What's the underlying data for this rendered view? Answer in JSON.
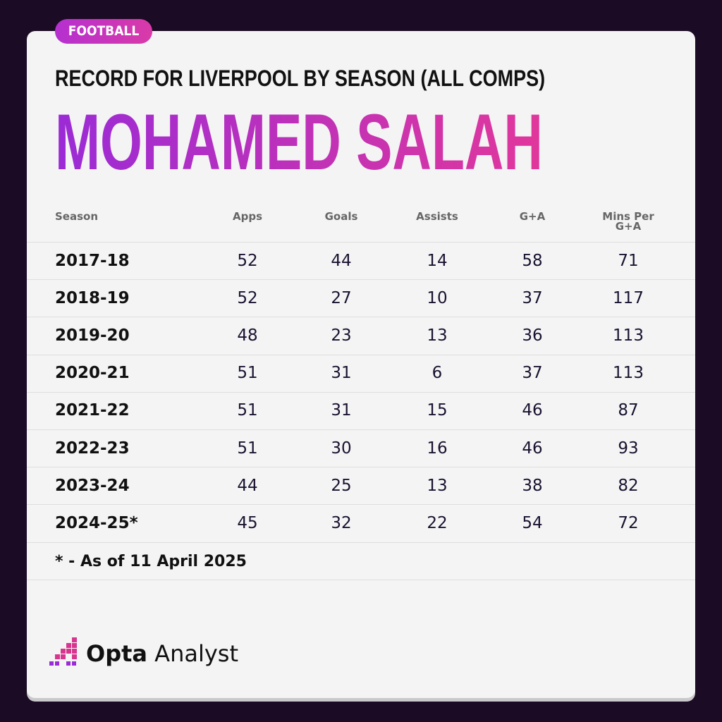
{
  "tag": "FOOTBALL",
  "subtitle": "RECORD FOR LIVERPOOL BY SEASON (ALL COMPS)",
  "title": "MOHAMED SALAH",
  "table": {
    "columns": [
      "Season",
      "Apps",
      "Goals",
      "Assists",
      "G+A",
      "Mins Per G+A"
    ],
    "rows": [
      [
        "2017-18",
        52,
        44,
        14,
        58,
        71
      ],
      [
        "2018-19",
        52,
        27,
        10,
        37,
        117
      ],
      [
        "2019-20",
        48,
        23,
        13,
        36,
        113
      ],
      [
        "2020-21",
        51,
        31,
        6,
        37,
        113
      ],
      [
        "2021-22",
        51,
        31,
        15,
        46,
        87
      ],
      [
        "2022-23",
        51,
        30,
        16,
        46,
        93
      ],
      [
        "2023-24",
        44,
        25,
        13,
        38,
        82
      ],
      [
        "2024-25*",
        45,
        32,
        22,
        54,
        72
      ]
    ]
  },
  "footnote": "* - As of 11 April 2025",
  "logo": {
    "brand": "Opta",
    "product": "Analyst"
  }
}
